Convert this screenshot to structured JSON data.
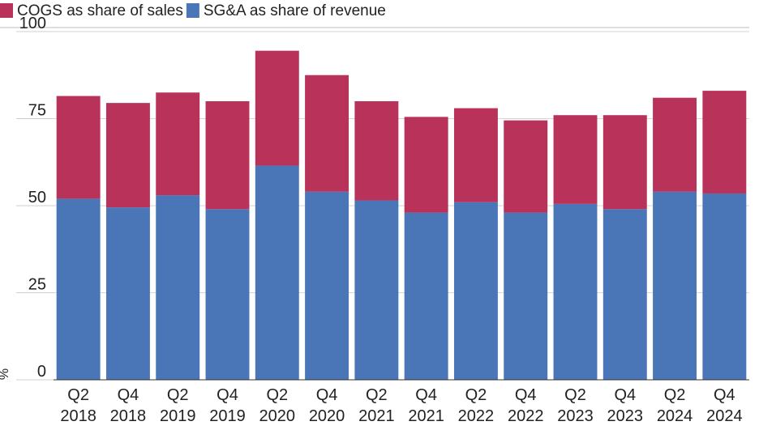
{
  "chart_data": {
    "type": "bar",
    "stacked": true,
    "categories": [
      [
        "Q2",
        "2018"
      ],
      [
        "Q4",
        "2018"
      ],
      [
        "Q2",
        "2019"
      ],
      [
        "Q4",
        "2019"
      ],
      [
        "Q2",
        "2020"
      ],
      [
        "Q4",
        "2020"
      ],
      [
        "Q2",
        "2021"
      ],
      [
        "Q4",
        "2021"
      ],
      [
        "Q2",
        "2022"
      ],
      [
        "Q4",
        "2022"
      ],
      [
        "Q2",
        "2023"
      ],
      [
        "Q4",
        "2023"
      ],
      [
        "Q2",
        "2024"
      ],
      [
        "Q4",
        "2024"
      ]
    ],
    "series": [
      {
        "name": "SG&A as share of revenue",
        "color": "#4a76b8",
        "values": [
          52,
          49.5,
          53,
          49,
          61.5,
          54,
          51.5,
          48,
          51,
          48,
          50.5,
          49,
          54,
          53.5
        ]
      },
      {
        "name": "COGS as share of sales",
        "color": "#b8325a",
        "values": [
          29.5,
          30,
          29.5,
          31,
          33,
          33.5,
          28.5,
          27.5,
          27,
          26.5,
          25.5,
          27,
          27,
          29.5
        ]
      }
    ],
    "legend": {
      "position": "top-left",
      "order": [
        "COGS as share of sales",
        "SG&A as share of revenue"
      ]
    },
    "ylabel": "%",
    "xlabel": "",
    "ylim": [
      0,
      100
    ],
    "yticks": [
      0,
      25,
      50,
      75,
      100
    ],
    "grid": true
  }
}
